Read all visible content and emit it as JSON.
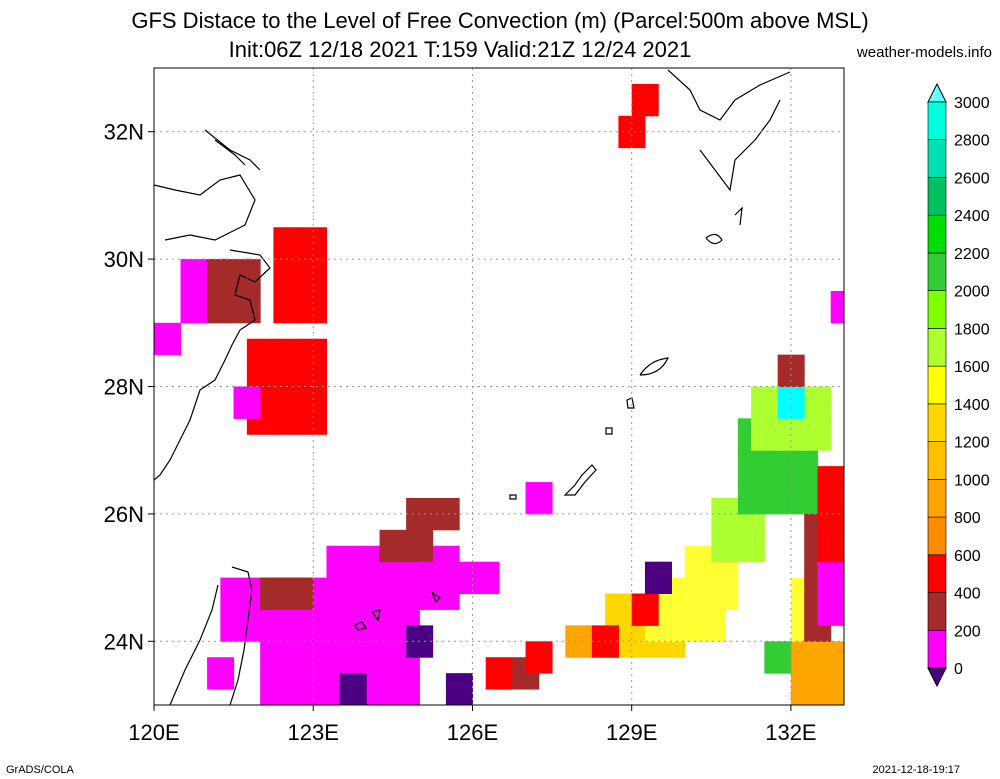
{
  "title": {
    "line1": "GFS Distace to the Level of Free Convection (m) (Parcel:500m above MSL)",
    "line2": "Init:06Z 12/18 2021 T:159 Valid:21Z 12/24 2021",
    "site": "weather-models.info"
  },
  "footer": {
    "credit": "GrADS/COLA",
    "timestamp": "2021-12-18-19:17"
  },
  "axes": {
    "lon_ticks": [
      {
        "value": 120,
        "label": "120E"
      },
      {
        "value": 123,
        "label": "123E"
      },
      {
        "value": 126,
        "label": "126E"
      },
      {
        "value": 129,
        "label": "129E"
      },
      {
        "value": 132,
        "label": "132E"
      }
    ],
    "lat_ticks": [
      {
        "value": 24,
        "label": "24N"
      },
      {
        "value": 26,
        "label": "26N"
      },
      {
        "value": 28,
        "label": "28N"
      },
      {
        "value": 30,
        "label": "30N"
      },
      {
        "value": 32,
        "label": "32N"
      }
    ],
    "lon_range": [
      120,
      133
    ],
    "lat_range": [
      23,
      33
    ]
  },
  "colorbar": {
    "levels": [
      "0",
      "200",
      "400",
      "600",
      "800",
      "1000",
      "1200",
      "1400",
      "1600",
      "1800",
      "2000",
      "2200",
      "2400",
      "2600",
      "2800",
      "3000"
    ],
    "colors": [
      "#4b0082",
      "#ff00ff",
      "#a52a2a",
      "#ff0000",
      "#ff8c00",
      "#ffa500",
      "#ffc000",
      "#ffd700",
      "#ffff00",
      "#adff2f",
      "#7fff00",
      "#32cd32",
      "#00e000",
      "#00c060",
      "#00e0b0",
      "#00ffdd",
      "#66ffff"
    ]
  },
  "field_colors": {
    "purple": "#4b0082",
    "magenta": "#ff00ff",
    "brown": "#a52a2a",
    "red": "#ff0000",
    "orange": "#ffa500",
    "gold": "#ffd700",
    "yellow": "#ffff33",
    "lime": "#adff2f",
    "green": "#32cd32",
    "cyan": "#00ffff"
  }
}
